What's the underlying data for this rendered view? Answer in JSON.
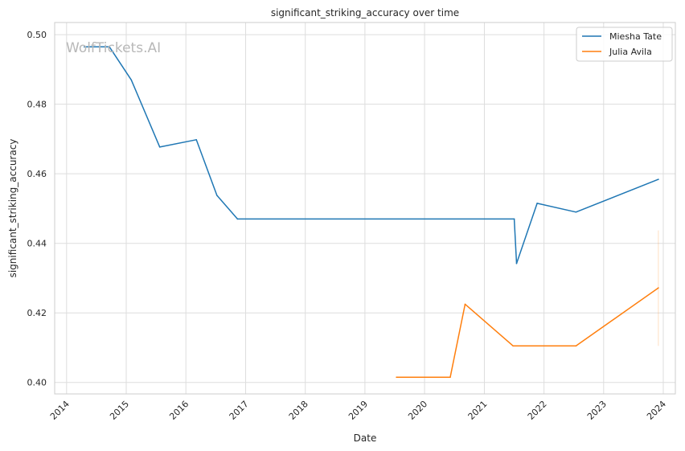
{
  "chart_data": {
    "type": "line",
    "title": "significant_striking_accuracy over time",
    "xlabel": "Date",
    "ylabel": "significant_striking_accuracy",
    "watermark": "WolfTickets.AI",
    "x_ticks": [
      "2014",
      "2015",
      "2016",
      "2017",
      "2018",
      "2019",
      "2020",
      "2021",
      "2022",
      "2023",
      "2024"
    ],
    "y_ticks": [
      "0.40",
      "0.42",
      "0.44",
      "0.46",
      "0.48",
      "0.50"
    ],
    "xlim": [
      "2013-10-20",
      "2024-03-15"
    ],
    "ylim": [
      0.3967,
      0.5035
    ],
    "grid": true,
    "legend_position": "top-right",
    "series": [
      {
        "name": "Miesha Tate",
        "color": "#1f77b4",
        "points": [
          [
            "2014-04-19",
            0.4965
          ],
          [
            "2014-09-20",
            0.4965
          ],
          [
            "2015-02-01",
            0.487
          ],
          [
            "2015-07-25",
            0.4677
          ],
          [
            "2016-03-05",
            0.4698
          ],
          [
            "2016-07-09",
            0.4538
          ],
          [
            "2016-11-12",
            0.447
          ],
          [
            "2021-07-03",
            0.447
          ],
          [
            "2021-07-17",
            0.4342
          ],
          [
            "2021-11-20",
            0.4515
          ],
          [
            "2022-07-16",
            0.449
          ],
          [
            "2023-12-02",
            0.4584
          ]
        ]
      },
      {
        "name": "Julia Avila",
        "color": "#ff7f0e",
        "points": [
          [
            "2019-07-13",
            0.4015
          ],
          [
            "2020-06-06",
            0.4015
          ],
          [
            "2020-09-05",
            0.4225
          ],
          [
            "2021-06-26",
            0.4105
          ],
          [
            "2022-07-16",
            0.4105
          ],
          [
            "2023-12-02",
            0.4272
          ]
        ],
        "band": {
          "date": "2023-12-02",
          "low": 0.4105,
          "high": 0.4437
        }
      }
    ]
  }
}
